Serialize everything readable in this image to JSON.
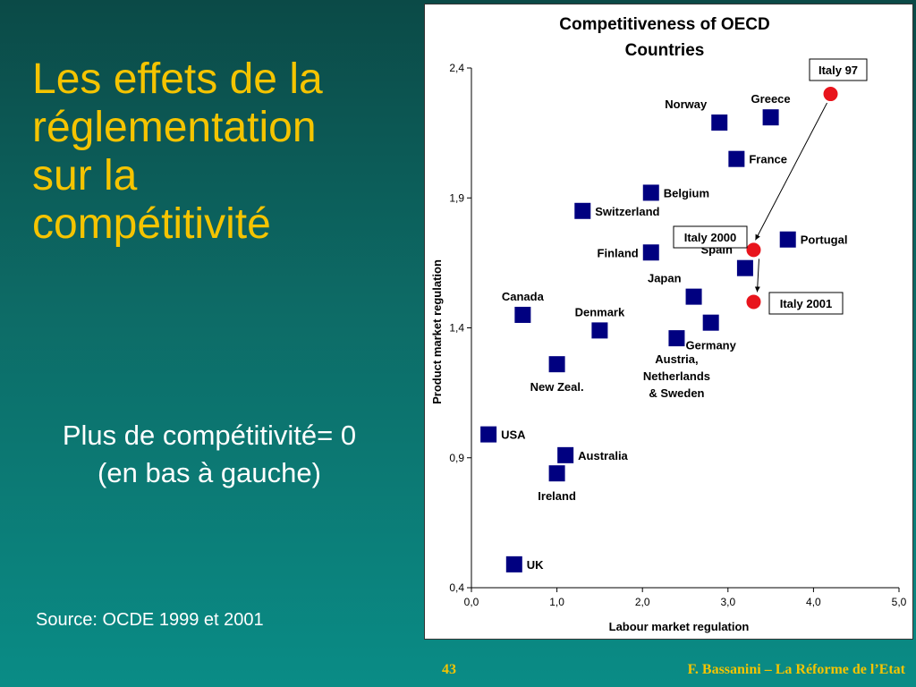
{
  "slide": {
    "title_lines": [
      "Les effets de la",
      "réglementation",
      "sur la",
      "compétitivité"
    ],
    "subtitle_lines": [
      "Plus de compétitivité= 0",
      "(en bas à gauche)"
    ],
    "source": "Source: OCDE 1999 et 2001",
    "slide_number": "43",
    "footer": "F. Bassanini – La Réforme de l’Etat"
  },
  "colors": {
    "title": "#f5c400",
    "point_square": "#000080",
    "point_italy": "#e8141c"
  },
  "chart_data": {
    "type": "scatter",
    "title_lines": [
      "Competitiveness of OECD",
      "Countries"
    ],
    "xlabel": "Labour market regulation",
    "ylabel": "Product market regulation",
    "xlim": [
      0,
      5
    ],
    "ylim": [
      0.4,
      2.4
    ],
    "xticks": [
      "0,0",
      "1,0",
      "2,0",
      "3,0",
      "4,0",
      "5,0"
    ],
    "xtick_values": [
      0,
      1,
      2,
      3,
      4,
      5
    ],
    "yticks": [
      "0,4",
      "0,9",
      "1,4",
      "1,9",
      "2,4"
    ],
    "ytick_values": [
      0.4,
      0.9,
      1.4,
      1.9,
      2.4
    ],
    "grid": false,
    "legend": "none",
    "points": [
      {
        "label": [
          "Norway"
        ],
        "x": 2.9,
        "y": 2.19,
        "marker": "square",
        "label_pos": "above-left"
      },
      {
        "label": [
          "Greece"
        ],
        "x": 3.5,
        "y": 2.21,
        "marker": "square",
        "label_pos": "above"
      },
      {
        "label": [
          "France"
        ],
        "x": 3.1,
        "y": 2.05,
        "marker": "square",
        "label_pos": "right"
      },
      {
        "label": [
          "Belgium"
        ],
        "x": 2.1,
        "y": 1.92,
        "marker": "square",
        "label_pos": "right"
      },
      {
        "label": [
          "Switzerland"
        ],
        "x": 1.3,
        "y": 1.85,
        "marker": "square",
        "label_pos": "right"
      },
      {
        "label": [
          "Portugal"
        ],
        "x": 3.7,
        "y": 1.74,
        "marker": "square",
        "label_pos": "right"
      },
      {
        "label": [
          "Finland"
        ],
        "x": 2.1,
        "y": 1.69,
        "marker": "square",
        "label_pos": "left"
      },
      {
        "label": [
          "Spain"
        ],
        "x": 3.2,
        "y": 1.63,
        "marker": "square",
        "label_pos": "above-left"
      },
      {
        "label": [
          "Japan"
        ],
        "x": 2.6,
        "y": 1.52,
        "marker": "square",
        "label_pos": "above-left"
      },
      {
        "label": [
          "Canada"
        ],
        "x": 0.6,
        "y": 1.45,
        "marker": "square",
        "label_pos": "above"
      },
      {
        "label": [
          "Denmark"
        ],
        "x": 1.5,
        "y": 1.39,
        "marker": "square",
        "label_pos": "above-right"
      },
      {
        "label": [
          "Germany"
        ],
        "x": 2.8,
        "y": 1.42,
        "marker": "square",
        "label_pos": "below-right"
      },
      {
        "label": [
          "Austria,",
          "Netherlands",
          "& Sweden"
        ],
        "x": 2.4,
        "y": 1.36,
        "marker": "square",
        "label_pos": "below"
      },
      {
        "label": [
          "New Zeal."
        ],
        "x": 1.0,
        "y": 1.26,
        "marker": "square",
        "label_pos": "below-right"
      },
      {
        "label": [
          "USA"
        ],
        "x": 0.2,
        "y": 0.99,
        "marker": "square",
        "label_pos": "right"
      },
      {
        "label": [
          "Australia"
        ],
        "x": 1.1,
        "y": 0.91,
        "marker": "square",
        "label_pos": "right"
      },
      {
        "label": [
          "Ireland"
        ],
        "x": 1.0,
        "y": 0.84,
        "marker": "square",
        "label_pos": "below-right"
      },
      {
        "label": [
          "UK"
        ],
        "x": 0.5,
        "y": 0.49,
        "marker": "square",
        "label_pos": "right"
      },
      {
        "label": [
          "Italy 97"
        ],
        "x": 4.2,
        "y": 2.3,
        "marker": "circle",
        "callout": true
      },
      {
        "label": [
          "Italy 2000"
        ],
        "x": 3.3,
        "y": 1.7,
        "marker": "circle",
        "callout": true
      },
      {
        "label": [
          "Italy 2001"
        ],
        "x": 3.3,
        "y": 1.5,
        "marker": "circle",
        "callout": true
      }
    ]
  }
}
